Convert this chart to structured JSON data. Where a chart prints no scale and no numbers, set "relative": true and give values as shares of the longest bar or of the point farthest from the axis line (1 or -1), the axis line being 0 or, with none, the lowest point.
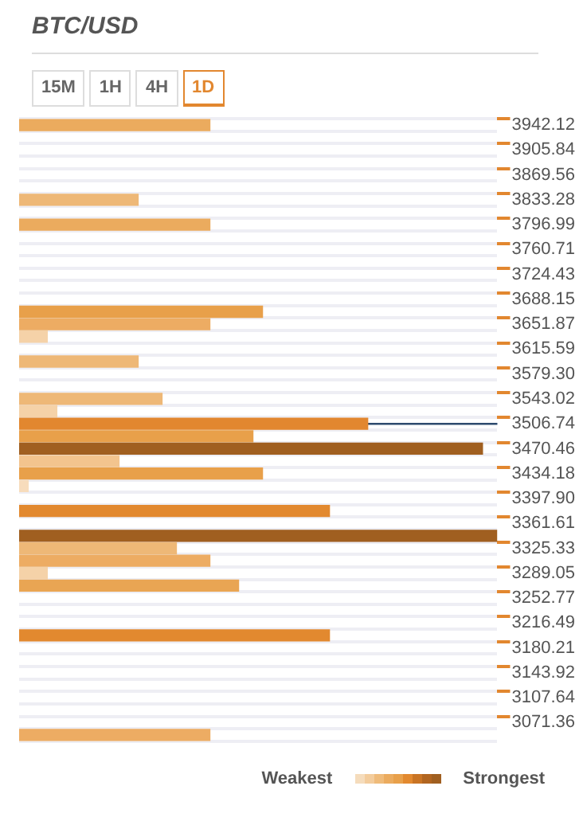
{
  "chart_data": {
    "type": "bar",
    "orientation": "horizontal",
    "relative": true,
    "title": "BTC/USD",
    "grid": "y",
    "legend": false,
    "categories": [
      "3942.12",
      null,
      "3905.84",
      null,
      "3869.56",
      null,
      "3833.28",
      null,
      "3796.99",
      null,
      "3760.71",
      null,
      "3724.43",
      null,
      "3688.15",
      null,
      "3651.87",
      null,
      "3615.59",
      null,
      "3579.30",
      null,
      "3543.02",
      null,
      "3506.74",
      null,
      "3470.46",
      null,
      "3434.18",
      null,
      "3397.90",
      null,
      "3361.61",
      null,
      "3325.33",
      null,
      "3289.05",
      null,
      "3252.77",
      null,
      "3216.49",
      null,
      "3180.21",
      null,
      "3143.92",
      null,
      "3107.64",
      null,
      "3071.36",
      null
    ],
    "values": [
      0.4,
      null,
      null,
      null,
      null,
      null,
      0.25,
      null,
      0.4,
      null,
      null,
      null,
      null,
      null,
      null,
      0.51,
      0.4,
      0.06,
      null,
      0.25,
      null,
      null,
      0.3,
      0.08,
      0.73,
      0.49,
      0.97,
      0.21,
      0.51,
      0.02,
      null,
      0.65,
      null,
      1,
      0.33,
      0.4,
      0.06,
      0.46,
      null,
      null,
      null,
      0.65,
      null,
      null,
      null,
      null,
      null,
      null,
      null,
      0.4
    ],
    "colors": [
      "#ebab5e",
      null,
      null,
      null,
      null,
      null,
      "#eeb877",
      null,
      "#ebab5e",
      null,
      null,
      null,
      null,
      null,
      null,
      "#e8a04a",
      "#edac63",
      "#f5d2a8",
      null,
      "#eeb877",
      null,
      null,
      "#eeb877",
      "#f5d2a8",
      "#e2872f",
      "#e8a04a",
      "#a05f20",
      "#f3c48e",
      "#e8a04a",
      "#f7dcbc",
      null,
      "#e2892f",
      null,
      "#a05f20",
      "#eeb877",
      "#edac63",
      "#f5d2a8",
      "#e9a553",
      null,
      null,
      null,
      "#e2892f",
      null,
      null,
      null,
      null,
      null,
      null,
      null,
      "#edac63"
    ],
    "ref_lines": [
      {
        "axis": "y",
        "value": "3506.74",
        "color": "#2c4a6e"
      }
    ],
    "annotations": [
      "15M",
      "1H",
      "4H",
      "1D",
      "Weakest",
      "Strongest"
    ]
  }
}
